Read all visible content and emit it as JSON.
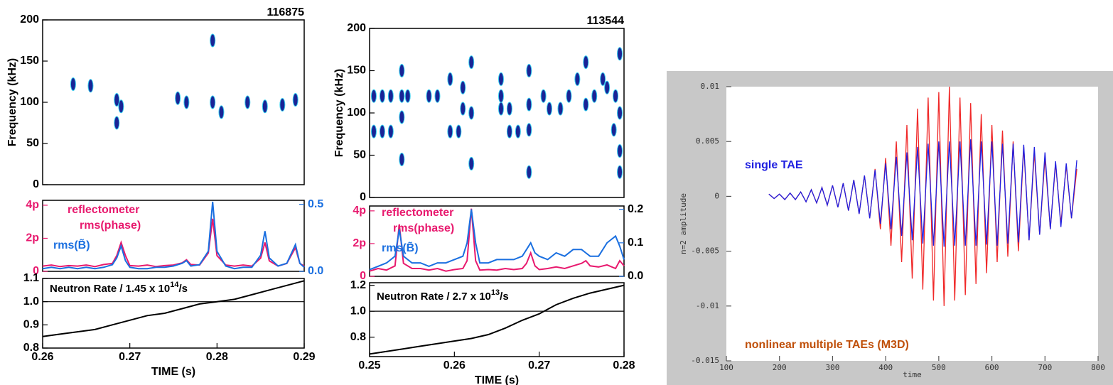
{
  "chart_data": [
    {
      "type": "spectrogram",
      "title": "116875",
      "ylabel": "Frequency (kHz)",
      "xlim": [
        0.26,
        0.29
      ],
      "ylim": [
        0,
        200
      ],
      "yticks": [
        0,
        50,
        100,
        150,
        200
      ],
      "color": "#1a2496",
      "x": [
        0.2635,
        0.2655,
        0.2685,
        0.269,
        0.2685,
        0.2755,
        0.2765,
        0.2795,
        0.2795,
        0.2805,
        0.2835,
        0.2855,
        0.2875,
        0.289
      ],
      "values": [
        122,
        120,
        103,
        95,
        75,
        105,
        100,
        100,
        175,
        88,
        100,
        95,
        97,
        103
      ]
    },
    {
      "type": "line",
      "xlim": [
        0.26,
        0.29
      ],
      "ylim": [
        0,
        13.5
      ],
      "yticks": [
        0,
        {
          "value": 6.283,
          "label": "2p"
        },
        {
          "value": 12.566,
          "label": "4p"
        }
      ],
      "y2lim": [
        0,
        0.53
      ],
      "y2ticks": [
        {
          "value": 0,
          "label": "0.0"
        },
        0.5
      ],
      "annotation": "reflectometer",
      "x": [
        0.26,
        0.261,
        0.262,
        0.263,
        0.264,
        0.265,
        0.266,
        0.267,
        0.268,
        0.2685,
        0.269,
        0.2695,
        0.27,
        0.271,
        0.272,
        0.273,
        0.274,
        0.275,
        0.276,
        0.2765,
        0.277,
        0.278,
        0.279,
        0.2795,
        0.28,
        0.281,
        0.282,
        0.283,
        0.284,
        0.285,
        0.2855,
        0.286,
        0.287,
        0.288,
        0.289,
        0.2895,
        0.29
      ],
      "series": [
        {
          "name": "rms(phase)",
          "color": "#e8196e",
          "values": [
            1.0,
            1.2,
            0.9,
            1.1,
            1.0,
            1.2,
            0.9,
            1.3,
            1.5,
            3.0,
            5.5,
            3.0,
            1.1,
            1.0,
            1.2,
            0.9,
            1.1,
            1.2,
            1.6,
            2.2,
            1.3,
            1.2,
            3.5,
            10.0,
            3.0,
            1.2,
            1.0,
            1.2,
            1.0,
            2.5,
            5.5,
            2.0,
            1.0,
            1.5,
            4.5,
            1.5,
            1.0
          ]
        },
        {
          "name": "rms(B̃)",
          "color": "#1a6fe0",
          "axis": "y2",
          "values": [
            0.02,
            0.03,
            0.02,
            0.03,
            0.02,
            0.03,
            0.02,
            0.03,
            0.05,
            0.1,
            0.19,
            0.08,
            0.03,
            0.02,
            0.02,
            0.03,
            0.03,
            0.04,
            0.06,
            0.08,
            0.04,
            0.05,
            0.15,
            0.52,
            0.15,
            0.04,
            0.02,
            0.03,
            0.03,
            0.12,
            0.3,
            0.1,
            0.04,
            0.06,
            0.2,
            0.06,
            0.03
          ]
        }
      ]
    },
    {
      "type": "line",
      "xlim": [
        0.26,
        0.29
      ],
      "ylim": [
        0.8,
        1.1
      ],
      "yticks": [
        0.8,
        0.9,
        {
          "value": 1.0,
          "label": "1.0"
        },
        1.1
      ],
      "xticks": [
        0.26,
        0.27,
        0.28,
        0.29
      ],
      "xlabel": "TIME (s)",
      "hline": 1.0,
      "annotation_parts": [
        "Neutron Rate / 1.45 x 10",
        "14",
        "/s"
      ],
      "color": "#000000",
      "x": [
        0.26,
        0.262,
        0.264,
        0.266,
        0.268,
        0.27,
        0.272,
        0.274,
        0.276,
        0.278,
        0.28,
        0.282,
        0.284,
        0.286,
        0.288,
        0.29
      ],
      "values": [
        0.85,
        0.86,
        0.87,
        0.88,
        0.9,
        0.92,
        0.94,
        0.95,
        0.97,
        0.99,
        1.0,
        1.01,
        1.03,
        1.05,
        1.07,
        1.09
      ]
    },
    {
      "type": "spectrogram",
      "title": "113544",
      "ylabel": "Frequency (kHz)",
      "xlim": [
        0.25,
        0.28
      ],
      "ylim": [
        0,
        200
      ],
      "yticks": [
        0,
        50,
        100,
        150,
        200
      ],
      "color": "#1a2496",
      "x": [
        0.2505,
        0.2515,
        0.2525,
        0.2505,
        0.2515,
        0.2525,
        0.2538,
        0.2538,
        0.2538,
        0.2538,
        0.2545,
        0.257,
        0.258,
        0.2595,
        0.2605,
        0.2595,
        0.261,
        0.261,
        0.262,
        0.262,
        0.262,
        0.2655,
        0.2655,
        0.2655,
        0.2665,
        0.2675,
        0.2665,
        0.2688,
        0.2688,
        0.2688,
        0.2688,
        0.2705,
        0.2712,
        0.2725,
        0.2735,
        0.2745,
        0.2755,
        0.2755,
        0.2765,
        0.2775,
        0.278,
        0.279,
        0.2795,
        0.2795,
        0.2788,
        0.2795,
        0.2795
      ],
      "values": [
        120,
        120,
        120,
        78,
        78,
        78,
        150,
        120,
        95,
        45,
        120,
        120,
        120,
        78,
        78,
        140,
        130,
        105,
        160,
        100,
        40,
        140,
        120,
        105,
        105,
        78,
        78,
        150,
        110,
        80,
        30,
        120,
        105,
        105,
        120,
        140,
        160,
        110,
        120,
        140,
        130,
        120,
        170,
        100,
        80,
        55,
        30
      ]
    },
    {
      "type": "line",
      "xlim": [
        0.25,
        0.28
      ],
      "ylim": [
        0,
        13.5
      ],
      "yticks": [
        0,
        {
          "value": 6.283,
          "label": "2p"
        },
        {
          "value": 12.566,
          "label": "4p"
        }
      ],
      "y2lim": [
        0,
        0.21
      ],
      "y2ticks": [
        {
          "value": 0,
          "label": "0.0"
        },
        0.1,
        0.2
      ],
      "annotation": "reflectometer",
      "x": [
        0.25,
        0.251,
        0.252,
        0.253,
        0.2535,
        0.254,
        0.255,
        0.256,
        0.257,
        0.258,
        0.259,
        0.26,
        0.261,
        0.2615,
        0.262,
        0.2625,
        0.263,
        0.264,
        0.265,
        0.266,
        0.267,
        0.268,
        0.2685,
        0.269,
        0.2695,
        0.27,
        0.271,
        0.272,
        0.273,
        0.274,
        0.275,
        0.2755,
        0.276,
        0.277,
        0.278,
        0.279,
        0.2795,
        0.28
      ],
      "series": [
        {
          "name": "rms(phase)",
          "color": "#e8196e",
          "values": [
            1.0,
            1.5,
            1.2,
            2.0,
            10.0,
            2.5,
            1.5,
            1.5,
            1.2,
            1.5,
            1.0,
            1.3,
            1.5,
            3.0,
            13.0,
            3.0,
            1.2,
            1.3,
            1.2,
            1.5,
            1.3,
            1.5,
            2.5,
            4.5,
            2.0,
            1.3,
            1.5,
            1.8,
            1.5,
            2.0,
            2.5,
            3.0,
            2.0,
            1.8,
            2.2,
            1.5,
            3.0,
            2.0
          ]
        },
        {
          "name": "rms(B̃)",
          "color": "#1a6fe0",
          "axis": "y2",
          "values": [
            0.02,
            0.03,
            0.04,
            0.06,
            0.14,
            0.06,
            0.04,
            0.04,
            0.03,
            0.04,
            0.04,
            0.05,
            0.06,
            0.1,
            0.2,
            0.1,
            0.04,
            0.04,
            0.05,
            0.05,
            0.05,
            0.06,
            0.08,
            0.1,
            0.07,
            0.06,
            0.05,
            0.07,
            0.06,
            0.08,
            0.08,
            0.07,
            0.06,
            0.06,
            0.1,
            0.12,
            0.09,
            0.05
          ]
        }
      ]
    },
    {
      "type": "line",
      "xlim": [
        0.25,
        0.28
      ],
      "ylim": [
        0.65,
        1.22
      ],
      "yticks": [
        0.8,
        {
          "value": 1.0,
          "label": "1.0"
        },
        1.2
      ],
      "xticks": [
        0.25,
        0.26,
        0.27,
        0.28
      ],
      "xlabel": "TIME (s)",
      "hline": 1.0,
      "annotation_parts": [
        "Neutron Rate / 2.7 x 10",
        "13",
        "/s"
      ],
      "color": "#000000",
      "x": [
        0.25,
        0.252,
        0.254,
        0.256,
        0.258,
        0.26,
        0.262,
        0.264,
        0.266,
        0.268,
        0.27,
        0.272,
        0.274,
        0.276,
        0.278,
        0.28
      ],
      "values": [
        0.67,
        0.69,
        0.71,
        0.73,
        0.75,
        0.77,
        0.79,
        0.82,
        0.87,
        0.93,
        0.98,
        1.05,
        1.1,
        1.14,
        1.17,
        1.2
      ]
    },
    {
      "type": "line",
      "xlabel": "time",
      "ylabel": "n=2 amplitude",
      "xlim": [
        100,
        800
      ],
      "ylim": [
        -0.015,
        0.01
      ],
      "xticks": [
        100,
        200,
        300,
        400,
        500,
        600,
        700,
        800
      ],
      "yticks": [
        -0.015,
        -0.01,
        -0.005,
        0,
        0.005,
        0.01
      ],
      "x": [
        180,
        190,
        200,
        210,
        220,
        230,
        240,
        250,
        260,
        270,
        280,
        290,
        300,
        310,
        320,
        330,
        340,
        350,
        360,
        370,
        380,
        390,
        400,
        410,
        420,
        430,
        440,
        450,
        460,
        470,
        480,
        490,
        500,
        510,
        520,
        530,
        540,
        550,
        560,
        570,
        580,
        590,
        600,
        610,
        620,
        630,
        640,
        650,
        660,
        670,
        680,
        690,
        700,
        710,
        720,
        730,
        740,
        750,
        760
      ],
      "series": [
        {
          "name": "nonlinear multiple TAEs (M3D)",
          "color": "#f02828",
          "values": [
            0.0002,
            -0.0002,
            0.0002,
            -0.0003,
            0.0003,
            -0.0003,
            0.0004,
            -0.0005,
            0.0006,
            -0.0006,
            0.0008,
            -0.0008,
            0.001,
            -0.001,
            0.0012,
            -0.0013,
            0.0015,
            -0.0016,
            0.0019,
            -0.002,
            0.0025,
            -0.003,
            0.0035,
            -0.0045,
            0.005,
            -0.006,
            0.0065,
            -0.0075,
            0.008,
            -0.0085,
            0.009,
            -0.0095,
            0.0095,
            -0.01,
            0.01,
            -0.0095,
            0.009,
            -0.009,
            0.0085,
            -0.008,
            0.0075,
            -0.007,
            0.0065,
            -0.006,
            0.006,
            -0.0055,
            0.005,
            -0.005,
            0.0045,
            -0.004,
            0.004,
            -0.0035,
            0.0035,
            -0.003,
            0.003,
            -0.0025,
            0.0028,
            -0.002,
            0.0025
          ]
        },
        {
          "name": "single TAE",
          "color": "#2020e0",
          "values": [
            0.0002,
            -0.0002,
            0.0002,
            -0.0003,
            0.0003,
            -0.0003,
            0.0004,
            -0.0005,
            0.0006,
            -0.0006,
            0.0008,
            -0.0008,
            0.001,
            -0.001,
            0.0012,
            -0.0013,
            0.0015,
            -0.0016,
            0.0019,
            -0.002,
            0.0024,
            -0.0025,
            0.003,
            -0.003,
            0.0036,
            -0.0036,
            0.004,
            -0.004,
            0.0045,
            -0.0043,
            0.0048,
            -0.0045,
            0.005,
            -0.0046,
            0.005,
            -0.0045,
            0.005,
            -0.0045,
            0.0052,
            -0.0045,
            0.005,
            -0.0044,
            0.005,
            -0.0045,
            0.0048,
            -0.0043,
            0.0048,
            -0.0042,
            0.0047,
            -0.004,
            0.0045,
            -0.0035,
            0.004,
            -0.003,
            0.0032,
            -0.0028,
            0.003,
            -0.002,
            0.0033
          ]
        }
      ]
    }
  ]
}
